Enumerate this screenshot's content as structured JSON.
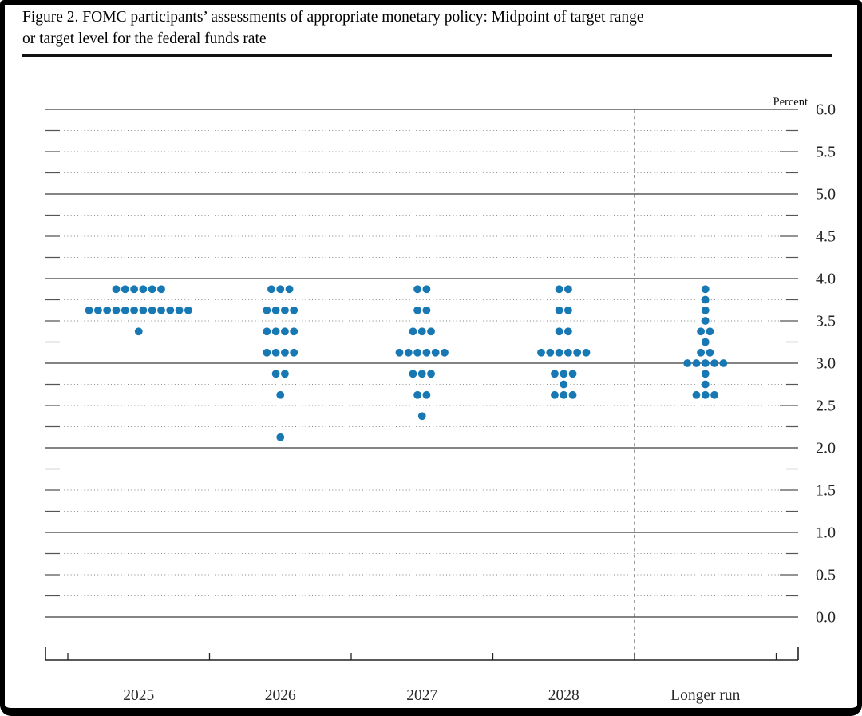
{
  "figure": {
    "title_line1": "Figure 2. FOMC participants’ assessments of appropriate monetary policy: Midpoint of target range",
    "title_line2": "or target level for the federal funds rate"
  },
  "chart_data": {
    "type": "scatter",
    "title": "Figure 2. FOMC participants’ assessments of appropriate monetary policy: Midpoint of target range or target level for the federal funds rate",
    "unit_label": "Percent",
    "ylim": [
      0.0,
      6.0
    ],
    "ytick_labeled_step": 0.5,
    "ytick_minor_step": 0.25,
    "grid": "horizontal: solid lines at whole percents, dotted lines at quarter percents, short solid tick dashes at both edges",
    "legend": "none",
    "dot_color": "#1878b4",
    "gridline_major_color": "#3a3a3a",
    "gridline_minor_color": "#8f8f8f",
    "axis_color": "#222222",
    "divider_note": "vertical dashed line separates 2028 from Longer run",
    "categories": [
      "2025",
      "2026",
      "2027",
      "2028",
      "Longer run"
    ],
    "y_axis_labels": [
      "6.0",
      "5.5",
      "5.0",
      "4.5",
      "4.0",
      "3.5",
      "3.0",
      "2.5",
      "2.0",
      "1.5",
      "1.0",
      "0.5",
      "0.0"
    ],
    "series": [
      {
        "name": "2025",
        "dots": [
          {
            "rate": 3.875,
            "count": 6
          },
          {
            "rate": 3.625,
            "count": 12
          },
          {
            "rate": 3.375,
            "count": 1
          }
        ]
      },
      {
        "name": "2026",
        "dots": [
          {
            "rate": 3.875,
            "count": 3
          },
          {
            "rate": 3.625,
            "count": 4
          },
          {
            "rate": 3.375,
            "count": 4
          },
          {
            "rate": 3.125,
            "count": 4
          },
          {
            "rate": 2.875,
            "count": 2
          },
          {
            "rate": 2.625,
            "count": 1
          },
          {
            "rate": 2.125,
            "count": 1
          }
        ]
      },
      {
        "name": "2027",
        "dots": [
          {
            "rate": 3.875,
            "count": 2
          },
          {
            "rate": 3.625,
            "count": 2
          },
          {
            "rate": 3.375,
            "count": 3
          },
          {
            "rate": 3.125,
            "count": 6
          },
          {
            "rate": 2.875,
            "count": 3
          },
          {
            "rate": 2.625,
            "count": 2
          },
          {
            "rate": 2.375,
            "count": 1
          }
        ]
      },
      {
        "name": "2028",
        "dots": [
          {
            "rate": 3.875,
            "count": 2
          },
          {
            "rate": 3.625,
            "count": 2
          },
          {
            "rate": 3.375,
            "count": 2
          },
          {
            "rate": 3.125,
            "count": 6
          },
          {
            "rate": 2.875,
            "count": 3
          },
          {
            "rate": 2.75,
            "count": 1
          },
          {
            "rate": 2.625,
            "count": 3
          }
        ]
      },
      {
        "name": "Longer run",
        "dots": [
          {
            "rate": 3.875,
            "count": 1
          },
          {
            "rate": 3.75,
            "count": 1
          },
          {
            "rate": 3.625,
            "count": 1
          },
          {
            "rate": 3.5,
            "count": 1
          },
          {
            "rate": 3.375,
            "count": 2
          },
          {
            "rate": 3.25,
            "count": 1
          },
          {
            "rate": 3.125,
            "count": 2
          },
          {
            "rate": 3.0,
            "count": 5
          },
          {
            "rate": 2.875,
            "count": 1
          },
          {
            "rate": 2.75,
            "count": 1
          },
          {
            "rate": 2.625,
            "count": 3
          }
        ]
      }
    ]
  }
}
